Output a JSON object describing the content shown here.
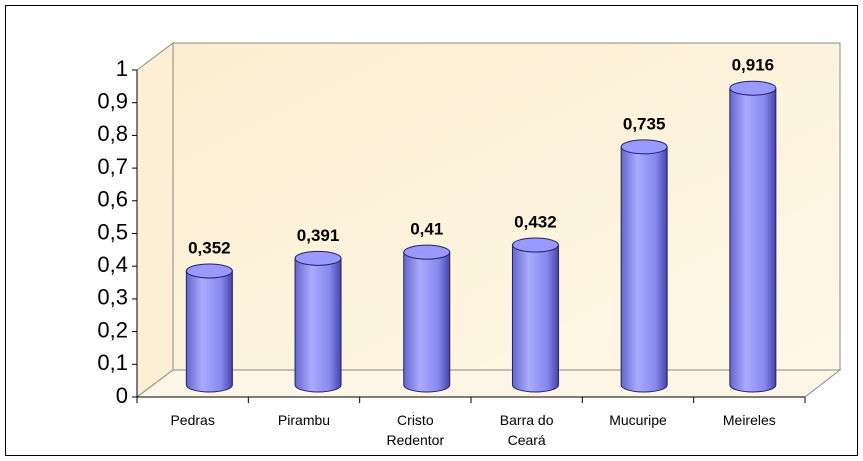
{
  "chart_data": {
    "type": "bar",
    "categories": [
      "Pedras",
      "Pirambu",
      "Cristo Redentor",
      "Barra do Ceará",
      "Mucuripe",
      "Meireles"
    ],
    "values": [
      0.352,
      0.391,
      0.41,
      0.432,
      0.735,
      0.916
    ],
    "value_labels": [
      "0,352",
      "0,391",
      "0,41",
      "0,432",
      "0,735",
      "0,916"
    ],
    "color": "#9999ff",
    "ylim": [
      0,
      1
    ],
    "yticks": [
      0,
      {
        "value": 0.1,
        "label": "0,1"
      },
      {
        "value": 0.2,
        "label": "0,2"
      },
      {
        "value": 0.3,
        "label": "0,3"
      },
      {
        "value": 0.4,
        "label": "0,4"
      },
      {
        "value": 0.5,
        "label": "0,5"
      },
      {
        "value": 0.6,
        "label": "0,6"
      },
      {
        "value": 0.7,
        "label": "0,7"
      },
      {
        "value": 0.8,
        "label": "0,8"
      },
      {
        "value": 0.9,
        "label": "0,9"
      },
      1
    ],
    "grid": false
  }
}
